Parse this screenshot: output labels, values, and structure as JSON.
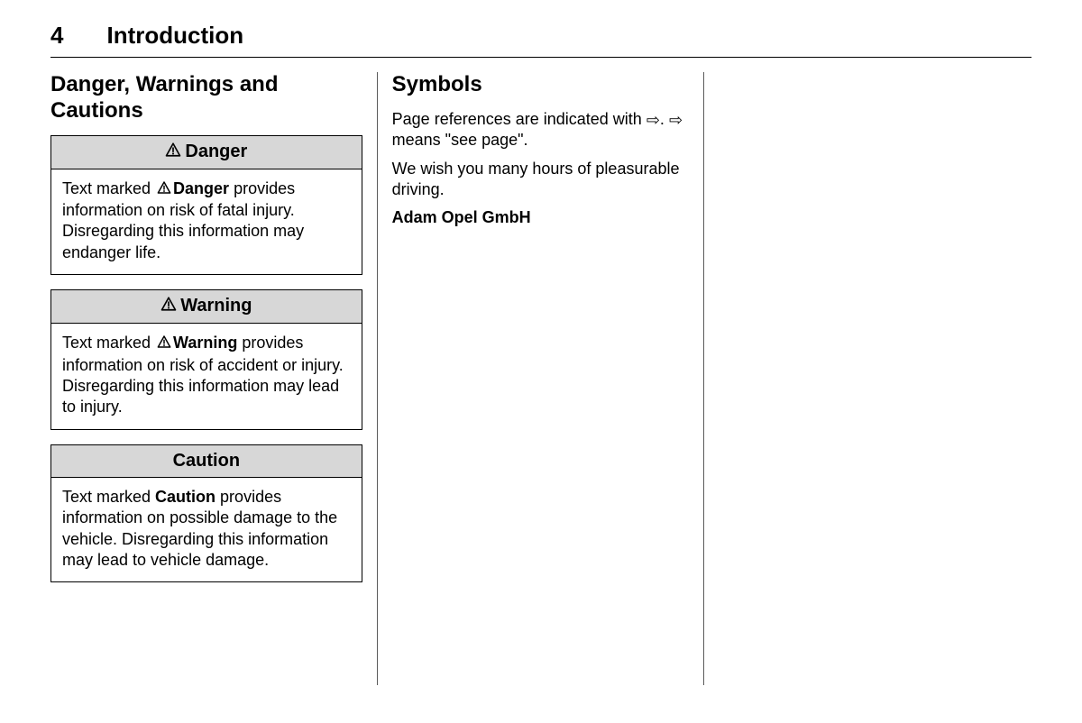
{
  "header": {
    "page_number": "4",
    "section_title": "Introduction"
  },
  "col1": {
    "heading": "Danger, Warnings and Cautions",
    "boxes": [
      {
        "title": "Danger",
        "has_triangle": true,
        "body_pre": "Text marked ",
        "body_bold": "Danger",
        "body_bold_triangle": true,
        "body_post": " provides information on risk of fatal injury. Disregarding this information may endanger life."
      },
      {
        "title": "Warning",
        "has_triangle": true,
        "body_pre": "Text marked ",
        "body_bold": "Warning",
        "body_bold_triangle": true,
        "body_post": " provides information on risk of accident or injury. Disregarding this information may lead to injury."
      },
      {
        "title": "Caution",
        "has_triangle": false,
        "body_pre": "Text marked ",
        "body_bold": "Caution",
        "body_bold_triangle": false,
        "body_post": " provides information on possible damage to the vehicle. Disregarding this information may lead to vehicle damage."
      }
    ]
  },
  "col2": {
    "heading": "Symbols",
    "para1_pre": "Page references are indicated with ",
    "para1_mid": ". ",
    "para1_post": " means \"see page\".",
    "para2": "We wish you many hours of pleasurable driving.",
    "signoff": "Adam Opel GmbH"
  },
  "icons": {
    "triangle_color": "#000000",
    "arrow_glyph": "⇨"
  }
}
